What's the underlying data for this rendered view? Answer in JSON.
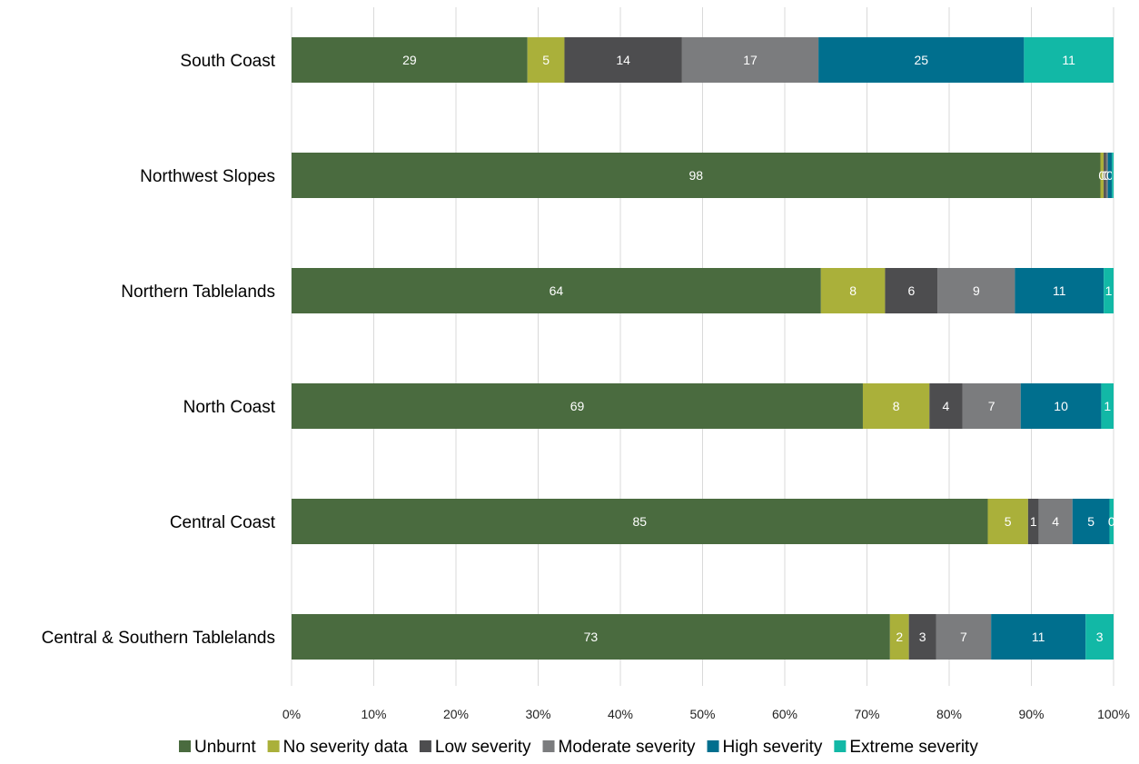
{
  "chart_data": {
    "type": "bar",
    "orientation": "horizontal",
    "stacked": "percent",
    "categories": [
      "South Coast",
      "Northwest Slopes",
      "Northern Tablelands",
      "North Coast",
      "Central Coast",
      "Central & Southern Tablelands"
    ],
    "series": [
      {
        "name": "Unburnt",
        "color": "#4a6b3f",
        "values": [
          28.7,
          98.4,
          64.4,
          69.5,
          84.7,
          72.8
        ],
        "labels": [
          "29",
          "98",
          "64",
          "69",
          "85",
          "73"
        ]
      },
      {
        "name": "No severity data",
        "color": "#aab03a",
        "values": [
          4.5,
          0.4,
          7.8,
          8.1,
          4.9,
          2.3
        ],
        "labels": [
          "5",
          "0",
          "8",
          "8",
          "5",
          "2"
        ]
      },
      {
        "name": "Low severity",
        "color": "#4d4d4f",
        "values": [
          14.3,
          0.3,
          6.4,
          4.0,
          1.3,
          3.3
        ],
        "labels": [
          "14",
          "0",
          "6",
          "4",
          "1",
          "3"
        ]
      },
      {
        "name": "Moderate severity",
        "color": "#7b7c7e",
        "values": [
          16.6,
          0.2,
          9.4,
          7.1,
          4.1,
          6.7
        ],
        "labels": [
          "17",
          "0",
          "9",
          "7",
          "4",
          "7"
        ]
      },
      {
        "name": "High severity",
        "color": "#006f8e",
        "values": [
          25.0,
          0.5,
          10.8,
          9.8,
          4.5,
          11.5
        ],
        "labels": [
          "25",
          "0",
          "11",
          "10",
          "5",
          "11"
        ]
      },
      {
        "name": "Extreme severity",
        "color": "#12b8a6",
        "values": [
          10.9,
          0.2,
          1.2,
          1.5,
          0.5,
          3.4
        ],
        "labels": [
          "11",
          "",
          "1",
          "1",
          "0",
          "3"
        ]
      }
    ],
    "x_ticks": [
      "0%",
      "10%",
      "20%",
      "30%",
      "40%",
      "50%",
      "60%",
      "70%",
      "80%",
      "90%",
      "100%"
    ],
    "xlim": [
      0,
      100
    ],
    "grid": "vertical",
    "legend_position": "bottom"
  }
}
